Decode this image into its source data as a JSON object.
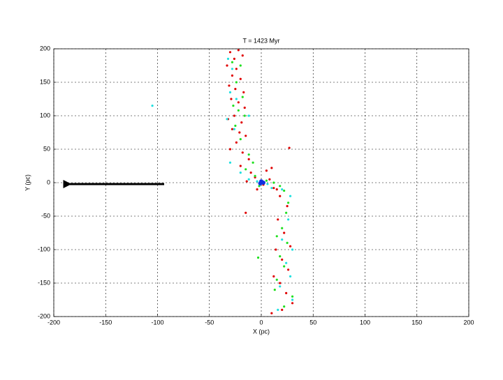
{
  "chart_data": {
    "type": "scatter",
    "title": "T = 1423 Myr",
    "x_label": "X (pc)",
    "y_label": "Y (pc)",
    "xlim": [
      -200,
      200
    ],
    "ylim": [
      -200,
      200
    ],
    "xticks": [
      -200,
      -150,
      -100,
      -50,
      0,
      50,
      100,
      150,
      200
    ],
    "yticks": [
      -200,
      -150,
      -100,
      -50,
      0,
      50,
      100,
      150,
      200
    ],
    "grid": true,
    "series": [
      {
        "color": "#e00000",
        "x": [
          -30,
          -22,
          -26,
          -18,
          -33,
          -24,
          -28,
          -20,
          -31,
          -25,
          -17,
          -29,
          -22,
          -16,
          -32,
          -26,
          -19,
          -28,
          -21,
          -15,
          -24,
          -30,
          -18,
          -12,
          -20,
          -10,
          -6,
          -14,
          2,
          8,
          12,
          5,
          10,
          -15,
          18,
          25,
          16,
          22,
          28,
          14,
          20,
          26,
          12,
          18,
          24,
          30,
          20,
          10,
          27,
          -4,
          15
        ],
        "values": [
          195,
          198,
          185,
          190,
          175,
          170,
          160,
          155,
          145,
          140,
          135,
          125,
          120,
          112,
          95,
          100,
          90,
          80,
          75,
          70,
          60,
          50,
          45,
          35,
          25,
          15,
          8,
          2,
          -3,
          5,
          -8,
          18,
          22,
          -45,
          -20,
          -35,
          -55,
          -75,
          -95,
          -100,
          -115,
          -130,
          -140,
          -150,
          -165,
          -180,
          -190,
          -195,
          52,
          -10,
          -10
        ]
      },
      {
        "color": "#20e020",
        "x": [
          -28,
          -20,
          -24,
          -18,
          -27,
          -22,
          -16,
          -25,
          -20,
          -12,
          -8,
          -15,
          -6,
          -2,
          5,
          12,
          18,
          22,
          26,
          24,
          20,
          15,
          25,
          18,
          22,
          15,
          13,
          30,
          22,
          -3
        ],
        "values": [
          180,
          175,
          150,
          128,
          115,
          108,
          100,
          85,
          65,
          42,
          30,
          20,
          10,
          -5,
          3,
          0,
          -5,
          -12,
          -30,
          -45,
          -68,
          -80,
          -90,
          -110,
          -125,
          -145,
          -160,
          -170,
          -185,
          -112
        ]
      },
      {
        "color": "#20e0e0",
        "x": [
          -105,
          -32,
          -28,
          -30,
          -24,
          -33,
          -26,
          -30,
          -20,
          -12,
          -4,
          6,
          10,
          20,
          28,
          26,
          20,
          30,
          24,
          28,
          18,
          30,
          16,
          -12
        ],
        "values": [
          115,
          185,
          170,
          135,
          125,
          95,
          80,
          30,
          15,
          5,
          2,
          -2,
          -8,
          -10,
          -20,
          -55,
          -85,
          -100,
          -120,
          -140,
          -155,
          -175,
          -190,
          100
        ]
      },
      {
        "color": "#1030e0",
        "x": [
          0,
          2,
          -1
        ],
        "values": [
          2,
          0,
          -1
        ]
      }
    ]
  }
}
